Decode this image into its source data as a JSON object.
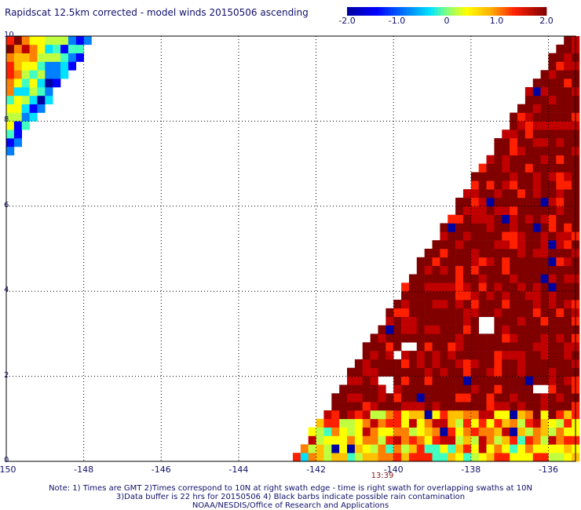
{
  "title": "Rapidscat 12.5km corrected - model winds 20150506 ascending",
  "colorbar": {
    "labels": [
      "-2.0",
      "-1.0",
      "0",
      "1.0",
      "2.0"
    ],
    "values": [
      -2.0,
      -1.0,
      0,
      1.0,
      2.0
    ],
    "range": [
      -2.0,
      2.0
    ],
    "colors": [
      "#0000a0",
      "#0000ff",
      "#0080ff",
      "#00e0ff",
      "#40ffc0",
      "#c0ff40",
      "#ffff00",
      "#ffc000",
      "#ff8000",
      "#ff2000",
      "#c00000",
      "#800000"
    ]
  },
  "time_label": "13:39",
  "notes": [
    "Note: 1) Times are GMT 2)Times correspond to 10N at right swath edge - time is right swath for overlapping swaths at 10N",
    "3)Data buffer is 22 hrs for 20150506 4) Black barbs indicate possible rain contamination",
    "NOAA/NESDIS/Office of Research and Applications"
  ],
  "chart_data": {
    "type": "heatmap",
    "title": "Rapidscat 12.5km corrected - model winds 20150506 ascending",
    "xlabel": "",
    "ylabel": "",
    "xlim": [
      -150,
      -135.3
    ],
    "ylim": [
      0,
      10
    ],
    "x_ticks": [
      -150,
      -148,
      -146,
      -144,
      -142,
      -140,
      -138,
      -136
    ],
    "x_tick_labels": [
      "-150",
      "-148",
      "-146",
      "-144",
      "-142",
      "-140",
      "-138",
      "-136"
    ],
    "y_ticks": [
      0,
      2,
      4,
      6,
      8,
      10
    ],
    "y_tick_labels": [
      "0",
      "2",
      "4",
      "6",
      "8",
      "10"
    ],
    "grid": "dotted",
    "value_range": [
      -2.0,
      2.0
    ],
    "cell_deg": 0.2,
    "swaths": [
      {
        "name": "",
        "polygon_lonlat": [
          [
            -150,
            10
          ],
          [
            -147.7,
            10
          ],
          [
            -150,
            7.1
          ]
        ],
        "mean_value": -0.3
      },
      {
        "name": "",
        "polygon_lonlat": [
          [
            -142.6,
            0
          ],
          [
            -135.3,
            0
          ],
          [
            -135.3,
            10
          ],
          [
            -135.6,
            10
          ]
        ],
        "mean_value": 1.5
      }
    ],
    "missing_points_lonlat": [
      [
        -139.6,
        2.7
      ],
      [
        -139.9,
        2.5
      ],
      [
        -140.3,
        1.9
      ],
      [
        -140.1,
        1.8
      ],
      [
        -136.2,
        1.7
      ],
      [
        -137.6,
        3.2
      ]
    ]
  }
}
